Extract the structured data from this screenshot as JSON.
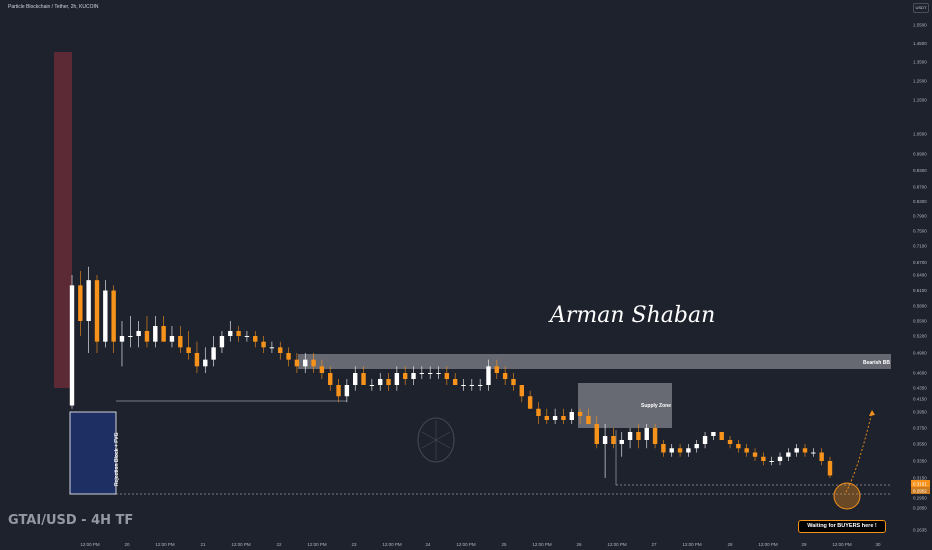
{
  "header": {
    "title": "Particle Blockchain / Tether, 2h, KUCOIN",
    "currency": "USDT"
  },
  "pair_label": "GTAI/USD - 4H TF",
  "signature": "Arman Shaban",
  "zones": {
    "bearish_bb": "Bearish BB",
    "supply_zone": "Supply Zone",
    "rejection_block": "Rejection Block + FVG",
    "buyers_note": "Waiting for BUYERS here !"
  },
  "colors": {
    "background": "#1e222d",
    "up_candle": "#ffffff",
    "down_candle": "#f7931a",
    "rejection_zone": "#1e2f63",
    "top_zone": "#5c2a35",
    "bearish_zone": "#6f717a",
    "supply_zone": "#757780"
  },
  "chart_data": {
    "type": "candlestick",
    "y_axis_ticks": [
      "1.5500",
      "1.4500",
      "1.3500",
      "1.2500",
      "1.1500",
      "1.0500",
      "0.9900",
      "0.9300",
      "0.8700",
      "0.8300",
      "0.7900",
      "0.7500",
      "0.7100",
      "0.6700",
      "0.6400",
      "0.6100",
      "0.5800",
      "0.5500",
      "0.5200",
      "0.4900",
      "0.4600",
      "0.4350",
      "0.4150",
      "0.3950",
      "0.3750",
      "0.3550",
      "0.3350",
      "0.3150",
      "0.2950",
      "0.2850",
      "0.2635"
    ],
    "x_axis_ticks": [
      "12:00 PM",
      "20",
      "12:00 PM",
      "21",
      "12:00 PM",
      "22",
      "12:00 PM",
      "23",
      "12:00 PM",
      "24",
      "12:00 PM",
      "25",
      "12:00 PM",
      "26",
      "12:00 PM",
      "27",
      "12:00 PM",
      "28",
      "12:00 PM",
      "29",
      "12:00 PM",
      "30"
    ],
    "price_labels": [
      "0.3181",
      "0.2952"
    ],
    "candles": [
      {
        "o": 0.405,
        "h": 0.64,
        "l": 0.4,
        "c": 0.62
      },
      {
        "o": 0.62,
        "h": 0.65,
        "l": 0.52,
        "c": 0.55
      },
      {
        "o": 0.55,
        "h": 0.66,
        "l": 0.49,
        "c": 0.63
      },
      {
        "o": 0.63,
        "h": 0.64,
        "l": 0.49,
        "c": 0.51
      },
      {
        "o": 0.51,
        "h": 0.63,
        "l": 0.5,
        "c": 0.61
      },
      {
        "o": 0.61,
        "h": 0.62,
        "l": 0.49,
        "c": 0.51
      },
      {
        "o": 0.51,
        "h": 0.55,
        "l": 0.47,
        "c": 0.52
      },
      {
        "o": 0.52,
        "h": 0.56,
        "l": 0.5,
        "c": 0.52
      },
      {
        "o": 0.52,
        "h": 0.55,
        "l": 0.5,
        "c": 0.53
      },
      {
        "o": 0.53,
        "h": 0.56,
        "l": 0.5,
        "c": 0.51
      },
      {
        "o": 0.51,
        "h": 0.56,
        "l": 0.5,
        "c": 0.54
      },
      {
        "o": 0.54,
        "h": 0.56,
        "l": 0.51,
        "c": 0.51
      },
      {
        "o": 0.51,
        "h": 0.54,
        "l": 0.5,
        "c": 0.52
      },
      {
        "o": 0.52,
        "h": 0.54,
        "l": 0.49,
        "c": 0.5
      },
      {
        "o": 0.5,
        "h": 0.53,
        "l": 0.48,
        "c": 0.49
      },
      {
        "o": 0.49,
        "h": 0.51,
        "l": 0.46,
        "c": 0.47
      },
      {
        "o": 0.47,
        "h": 0.5,
        "l": 0.46,
        "c": 0.48
      },
      {
        "o": 0.48,
        "h": 0.52,
        "l": 0.47,
        "c": 0.5
      },
      {
        "o": 0.5,
        "h": 0.53,
        "l": 0.49,
        "c": 0.52
      },
      {
        "o": 0.52,
        "h": 0.55,
        "l": 0.51,
        "c": 0.53
      },
      {
        "o": 0.53,
        "h": 0.54,
        "l": 0.51,
        "c": 0.52
      },
      {
        "o": 0.52,
        "h": 0.53,
        "l": 0.51,
        "c": 0.52
      },
      {
        "o": 0.52,
        "h": 0.53,
        "l": 0.5,
        "c": 0.51
      },
      {
        "o": 0.51,
        "h": 0.52,
        "l": 0.49,
        "c": 0.5
      },
      {
        "o": 0.5,
        "h": 0.51,
        "l": 0.49,
        "c": 0.5
      },
      {
        "o": 0.5,
        "h": 0.51,
        "l": 0.48,
        "c": 0.49
      },
      {
        "o": 0.49,
        "h": 0.5,
        "l": 0.47,
        "c": 0.48
      },
      {
        "o": 0.48,
        "h": 0.49,
        "l": 0.46,
        "c": 0.47
      },
      {
        "o": 0.47,
        "h": 0.49,
        "l": 0.46,
        "c": 0.48
      },
      {
        "o": 0.48,
        "h": 0.49,
        "l": 0.46,
        "c": 0.47
      },
      {
        "o": 0.47,
        "h": 0.48,
        "l": 0.45,
        "c": 0.46
      },
      {
        "o": 0.46,
        "h": 0.47,
        "l": 0.43,
        "c": 0.44
      },
      {
        "o": 0.44,
        "h": 0.45,
        "l": 0.41,
        "c": 0.42
      },
      {
        "o": 0.42,
        "h": 0.45,
        "l": 0.41,
        "c": 0.44
      },
      {
        "o": 0.44,
        "h": 0.47,
        "l": 0.43,
        "c": 0.46
      },
      {
        "o": 0.46,
        "h": 0.47,
        "l": 0.44,
        "c": 0.44
      },
      {
        "o": 0.44,
        "h": 0.45,
        "l": 0.43,
        "c": 0.44
      },
      {
        "o": 0.44,
        "h": 0.46,
        "l": 0.43,
        "c": 0.45
      },
      {
        "o": 0.45,
        "h": 0.46,
        "l": 0.43,
        "c": 0.44
      },
      {
        "o": 0.44,
        "h": 0.47,
        "l": 0.43,
        "c": 0.46
      },
      {
        "o": 0.46,
        "h": 0.47,
        "l": 0.44,
        "c": 0.45
      },
      {
        "o": 0.45,
        "h": 0.47,
        "l": 0.44,
        "c": 0.46
      },
      {
        "o": 0.46,
        "h": 0.47,
        "l": 0.45,
        "c": 0.46
      },
      {
        "o": 0.46,
        "h": 0.47,
        "l": 0.45,
        "c": 0.46
      },
      {
        "o": 0.46,
        "h": 0.47,
        "l": 0.45,
        "c": 0.46
      },
      {
        "o": 0.46,
        "h": 0.47,
        "l": 0.44,
        "c": 0.45
      },
      {
        "o": 0.45,
        "h": 0.46,
        "l": 0.44,
        "c": 0.44
      },
      {
        "o": 0.44,
        "h": 0.45,
        "l": 0.43,
        "c": 0.44
      },
      {
        "o": 0.44,
        "h": 0.45,
        "l": 0.43,
        "c": 0.44
      },
      {
        "o": 0.44,
        "h": 0.45,
        "l": 0.43,
        "c": 0.44
      },
      {
        "o": 0.44,
        "h": 0.48,
        "l": 0.43,
        "c": 0.47
      },
      {
        "o": 0.47,
        "h": 0.48,
        "l": 0.45,
        "c": 0.46
      },
      {
        "o": 0.46,
        "h": 0.47,
        "l": 0.44,
        "c": 0.45
      },
      {
        "o": 0.45,
        "h": 0.46,
        "l": 0.43,
        "c": 0.44
      },
      {
        "o": 0.44,
        "h": 0.44,
        "l": 0.41,
        "c": 0.42
      },
      {
        "o": 0.42,
        "h": 0.43,
        "l": 0.4,
        "c": 0.4
      },
      {
        "o": 0.4,
        "h": 0.41,
        "l": 0.38,
        "c": 0.39
      },
      {
        "o": 0.39,
        "h": 0.4,
        "l": 0.38,
        "c": 0.385
      },
      {
        "o": 0.385,
        "h": 0.4,
        "l": 0.38,
        "c": 0.39
      },
      {
        "o": 0.39,
        "h": 0.4,
        "l": 0.38,
        "c": 0.385
      },
      {
        "o": 0.385,
        "h": 0.4,
        "l": 0.38,
        "c": 0.395
      },
      {
        "o": 0.395,
        "h": 0.4,
        "l": 0.38,
        "c": 0.39
      },
      {
        "o": 0.39,
        "h": 0.4,
        "l": 0.38,
        "c": 0.38
      },
      {
        "o": 0.38,
        "h": 0.39,
        "l": 0.35,
        "c": 0.355
      },
      {
        "o": 0.355,
        "h": 0.38,
        "l": 0.315,
        "c": 0.365
      },
      {
        "o": 0.365,
        "h": 0.375,
        "l": 0.35,
        "c": 0.355
      },
      {
        "o": 0.355,
        "h": 0.37,
        "l": 0.34,
        "c": 0.36
      },
      {
        "o": 0.36,
        "h": 0.375,
        "l": 0.35,
        "c": 0.37
      },
      {
        "o": 0.37,
        "h": 0.38,
        "l": 0.35,
        "c": 0.36
      },
      {
        "o": 0.36,
        "h": 0.38,
        "l": 0.35,
        "c": 0.375
      },
      {
        "o": 0.375,
        "h": 0.38,
        "l": 0.35,
        "c": 0.355
      },
      {
        "o": 0.355,
        "h": 0.36,
        "l": 0.34,
        "c": 0.345
      },
      {
        "o": 0.345,
        "h": 0.355,
        "l": 0.34,
        "c": 0.35
      },
      {
        "o": 0.35,
        "h": 0.355,
        "l": 0.34,
        "c": 0.345
      },
      {
        "o": 0.345,
        "h": 0.355,
        "l": 0.34,
        "c": 0.35
      },
      {
        "o": 0.35,
        "h": 0.36,
        "l": 0.345,
        "c": 0.355
      },
      {
        "o": 0.355,
        "h": 0.37,
        "l": 0.35,
        "c": 0.365
      },
      {
        "o": 0.365,
        "h": 0.37,
        "l": 0.36,
        "c": 0.37
      },
      {
        "o": 0.37,
        "h": 0.37,
        "l": 0.36,
        "c": 0.36
      },
      {
        "o": 0.36,
        "h": 0.365,
        "l": 0.35,
        "c": 0.355
      },
      {
        "o": 0.355,
        "h": 0.36,
        "l": 0.345,
        "c": 0.35
      },
      {
        "o": 0.35,
        "h": 0.355,
        "l": 0.34,
        "c": 0.345
      },
      {
        "o": 0.345,
        "h": 0.35,
        "l": 0.335,
        "c": 0.34
      },
      {
        "o": 0.34,
        "h": 0.345,
        "l": 0.33,
        "c": 0.335
      },
      {
        "o": 0.335,
        "h": 0.34,
        "l": 0.33,
        "c": 0.335
      },
      {
        "o": 0.335,
        "h": 0.345,
        "l": 0.33,
        "c": 0.34
      },
      {
        "o": 0.34,
        "h": 0.35,
        "l": 0.335,
        "c": 0.345
      },
      {
        "o": 0.345,
        "h": 0.355,
        "l": 0.34,
        "c": 0.35
      },
      {
        "o": 0.35,
        "h": 0.355,
        "l": 0.34,
        "c": 0.345
      },
      {
        "o": 0.345,
        "h": 0.35,
        "l": 0.34,
        "c": 0.345
      },
      {
        "o": 0.345,
        "h": 0.35,
        "l": 0.33,
        "c": 0.335
      },
      {
        "o": 0.335,
        "h": 0.34,
        "l": 0.315,
        "c": 0.318
      }
    ]
  }
}
